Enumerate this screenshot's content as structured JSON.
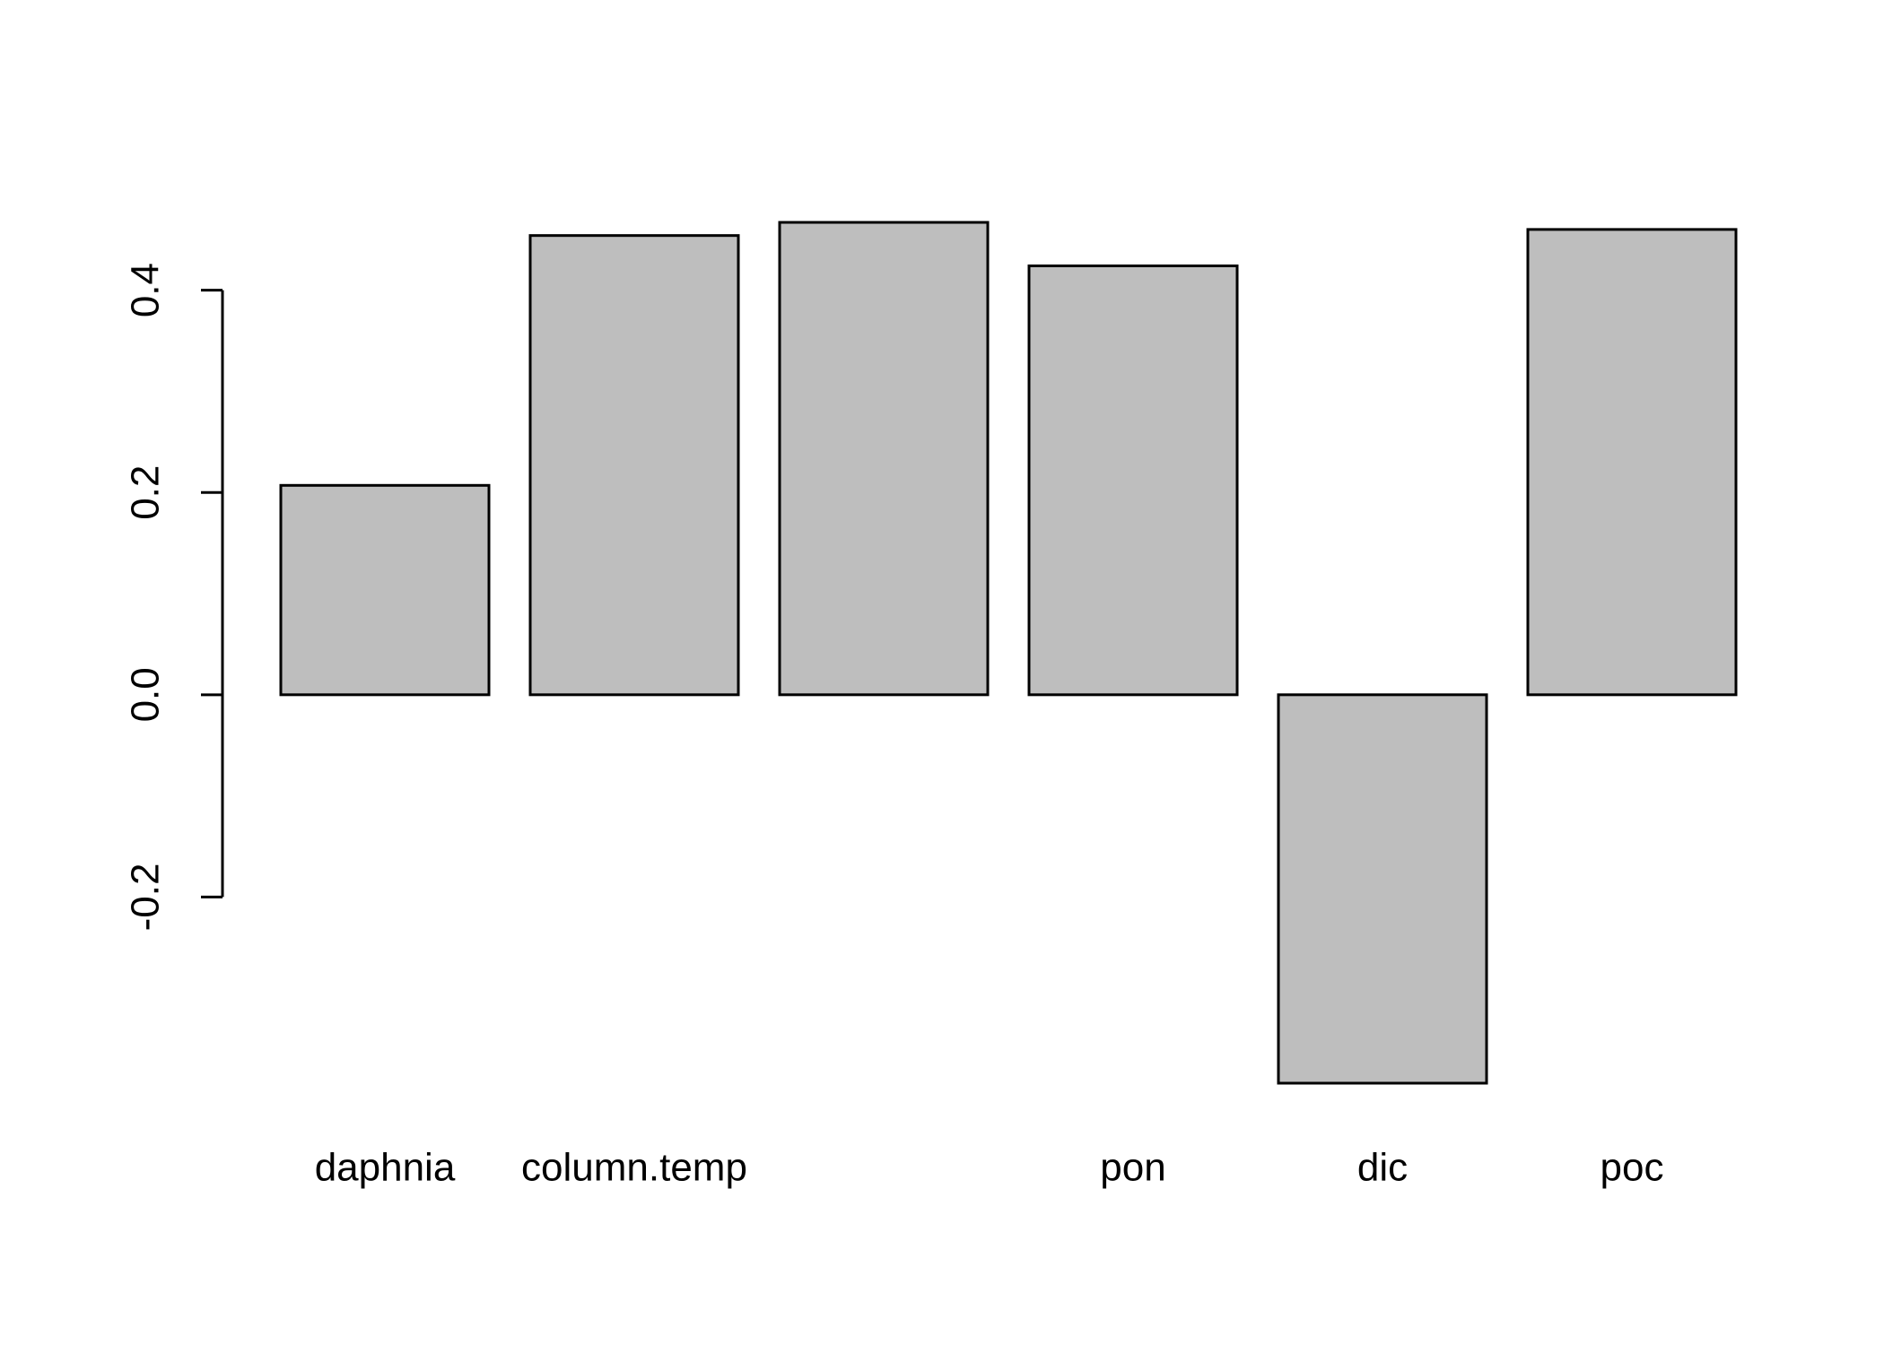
{
  "chart_data": {
    "type": "bar",
    "title": "",
    "xlabel": "",
    "ylabel": "",
    "categories": [
      "daphnia",
      "column.temp",
      "",
      "pon",
      "dic",
      "poc"
    ],
    "values": [
      0.207,
      0.454,
      0.467,
      0.424,
      -0.384,
      0.46
    ],
    "yticks": [
      -0.2,
      0.0,
      0.2,
      0.4
    ],
    "ytick_labels": [
      "-0.2",
      "0.0",
      "0.2",
      "0.4"
    ],
    "ylim": [
      -0.384,
      0.467
    ],
    "grid": false,
    "legend": "none",
    "bar_color": "#bebebe",
    "edge_color": "#000000"
  }
}
